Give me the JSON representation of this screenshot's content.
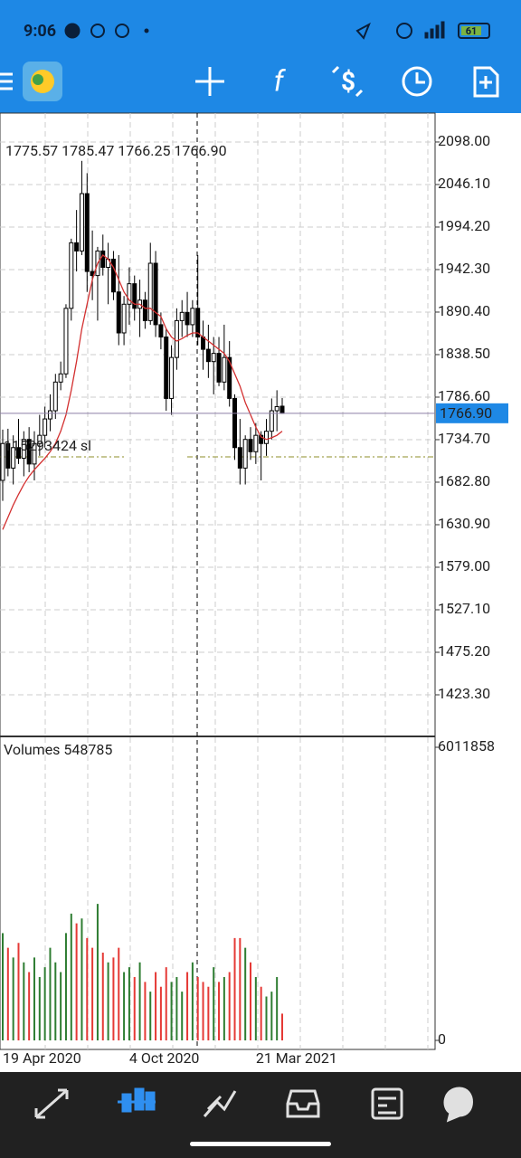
{
  "status_bar": {
    "time": "9:06",
    "battery": "61"
  },
  "chart_data": [
    {
      "type": "candlestick",
      "ohlc_label": "1775.57 1785.47 1766.25 1766.90",
      "open": [
        1685,
        1730,
        1700,
        1725,
        1712,
        1735,
        1705,
        1730,
        1740,
        1760,
        1770,
        1805,
        1815,
        1895,
        1975,
        1965,
        2035,
        1940,
        1935,
        1965,
        1945,
        1955,
        1915,
        1865,
        1900,
        1925,
        1895,
        1905,
        1880,
        1950,
        1875,
        1860,
        1785,
        1835,
        1880,
        1890,
        1875,
        1895,
        1860,
        1845,
        1830,
        1840,
        1805,
        1835,
        1785,
        1725,
        1700,
        1735,
        1720,
        1740,
        1730,
        1745,
        1770,
        1775.57
      ],
      "high": [
        1747,
        1748,
        1740,
        1760,
        1745,
        1750,
        1745,
        1765,
        1775,
        1790,
        1815,
        1830,
        1900,
        1980,
        2015,
        2075,
        2060,
        1990,
        1970,
        1985,
        1975,
        1965,
        1960,
        1910,
        1945,
        1935,
        1930,
        1915,
        1975,
        1965,
        1890,
        1870,
        1850,
        1895,
        1905,
        1915,
        1905,
        1960,
        1880,
        1875,
        1860,
        1860,
        1875,
        1855,
        1790,
        1760,
        1740,
        1750,
        1755,
        1745,
        1760,
        1785,
        1795,
        1785.47
      ],
      "low": [
        1660,
        1690,
        1680,
        1705,
        1690,
        1695,
        1685,
        1715,
        1725,
        1745,
        1760,
        1795,
        1810,
        1880,
        1940,
        1960,
        1915,
        1905,
        1880,
        1935,
        1900,
        1905,
        1850,
        1850,
        1875,
        1880,
        1860,
        1870,
        1875,
        1860,
        1845,
        1770,
        1765,
        1820,
        1860,
        1860,
        1860,
        1850,
        1820,
        1810,
        1790,
        1800,
        1795,
        1775,
        1710,
        1680,
        1680,
        1710,
        1705,
        1685,
        1715,
        1735,
        1745,
        1766.25
      ],
      "close": [
        1730,
        1700,
        1725,
        1712,
        1735,
        1705,
        1730,
        1740,
        1760,
        1770,
        1805,
        1815,
        1895,
        1975,
        1965,
        2035,
        1940,
        1935,
        1965,
        1945,
        1955,
        1915,
        1865,
        1900,
        1925,
        1895,
        1905,
        1880,
        1950,
        1875,
        1860,
        1785,
        1835,
        1880,
        1890,
        1875,
        1895,
        1860,
        1845,
        1830,
        1840,
        1805,
        1835,
        1785,
        1725,
        1700,
        1735,
        1720,
        1740,
        1730,
        1745,
        1770,
        1775,
        1766.9
      ],
      "up_color": "#ffffff",
      "down_color": "#000000",
      "ma_line": {
        "color": "#d32f2f",
        "values": [
          1625,
          1640,
          1655,
          1668,
          1680,
          1690,
          1698,
          1705,
          1712,
          1720,
          1730,
          1745,
          1765,
          1795,
          1830,
          1870,
          1900,
          1930,
          1950,
          1960,
          1955,
          1945,
          1930,
          1915,
          1905,
          1900,
          1900,
          1895,
          1895,
          1890,
          1885,
          1870,
          1860,
          1855,
          1858,
          1862,
          1865,
          1865,
          1860,
          1855,
          1850,
          1845,
          1840,
          1830,
          1815,
          1800,
          1780,
          1765,
          1750,
          1738,
          1735,
          1737,
          1740,
          1745
        ]
      },
      "current_price": {
        "value": 1766.9,
        "label": "1766.90",
        "color": "#1e88e5"
      },
      "order_line": {
        "value": 1713.7,
        "label": "115293424 sl",
        "color": "#8d8d2a"
      },
      "ylim": [
        1373.6,
        2133.3
      ],
      "yticks": [
        {
          "value": 2098,
          "label": "2098.00"
        },
        {
          "value": 2046.1,
          "label": "2046.10"
        },
        {
          "value": 1994.2,
          "label": "1994.20"
        },
        {
          "value": 1942.3,
          "label": "1942.30"
        },
        {
          "value": 1890.4,
          "label": "1890.40"
        },
        {
          "value": 1838.5,
          "label": "1838.50"
        },
        {
          "value": 1786.6,
          "label": "1786.60"
        },
        {
          "value": 1734.7,
          "label": "1734.70"
        },
        {
          "value": 1682.8,
          "label": "1682.80"
        },
        {
          "value": 1630.9,
          "label": "1630.90"
        },
        {
          "value": 1579,
          "label": "1579.00"
        },
        {
          "value": 1527.1,
          "label": "1527.10"
        },
        {
          "value": 1475.2,
          "label": "1475.20"
        },
        {
          "value": 1423.3,
          "label": "1423.30"
        }
      ],
      "grid": true
    },
    {
      "type": "bar",
      "title": "Volumes 548785",
      "categories": [
        "19 Apr 2020",
        null,
        null,
        null,
        null,
        null,
        null,
        null,
        null,
        null,
        null,
        null,
        null,
        null,
        null,
        null,
        null,
        null,
        null,
        null,
        null,
        null,
        null,
        null,
        "4 Oct 2020",
        null,
        null,
        null,
        null,
        null,
        null,
        null,
        null,
        null,
        null,
        null,
        null,
        null,
        null,
        null,
        null,
        null,
        null,
        null,
        null,
        null,
        null,
        null,
        "21 Mar 2021",
        null,
        null,
        null,
        null,
        null
      ],
      "values": [
        2200000,
        1900000,
        1700000,
        2000000,
        1600000,
        1400000,
        1700000,
        1300000,
        1500000,
        1900000,
        1600000,
        1400000,
        2200000,
        2600000,
        2400000,
        2500000,
        2100000,
        1900000,
        2800000,
        1800000,
        1600000,
        1700000,
        1900000,
        1400000,
        1500000,
        1300000,
        1600000,
        1200000,
        1000000,
        1400000,
        1100000,
        1500000,
        1200000,
        1300000,
        1000000,
        1400000,
        1600000,
        1300000,
        1200000,
        1100000,
        1500000,
        1200000,
        1300000,
        1400000,
        2100000,
        2100000,
        1900000,
        1600000,
        1300000,
        1100000,
        900000,
        1000000,
        1300000,
        548785
      ],
      "up_color": "#2e7d32",
      "down_color": "#e53935",
      "ylim": [
        -185550,
        6215960
      ],
      "yticks": [
        6011858,
        0
      ]
    }
  ]
}
